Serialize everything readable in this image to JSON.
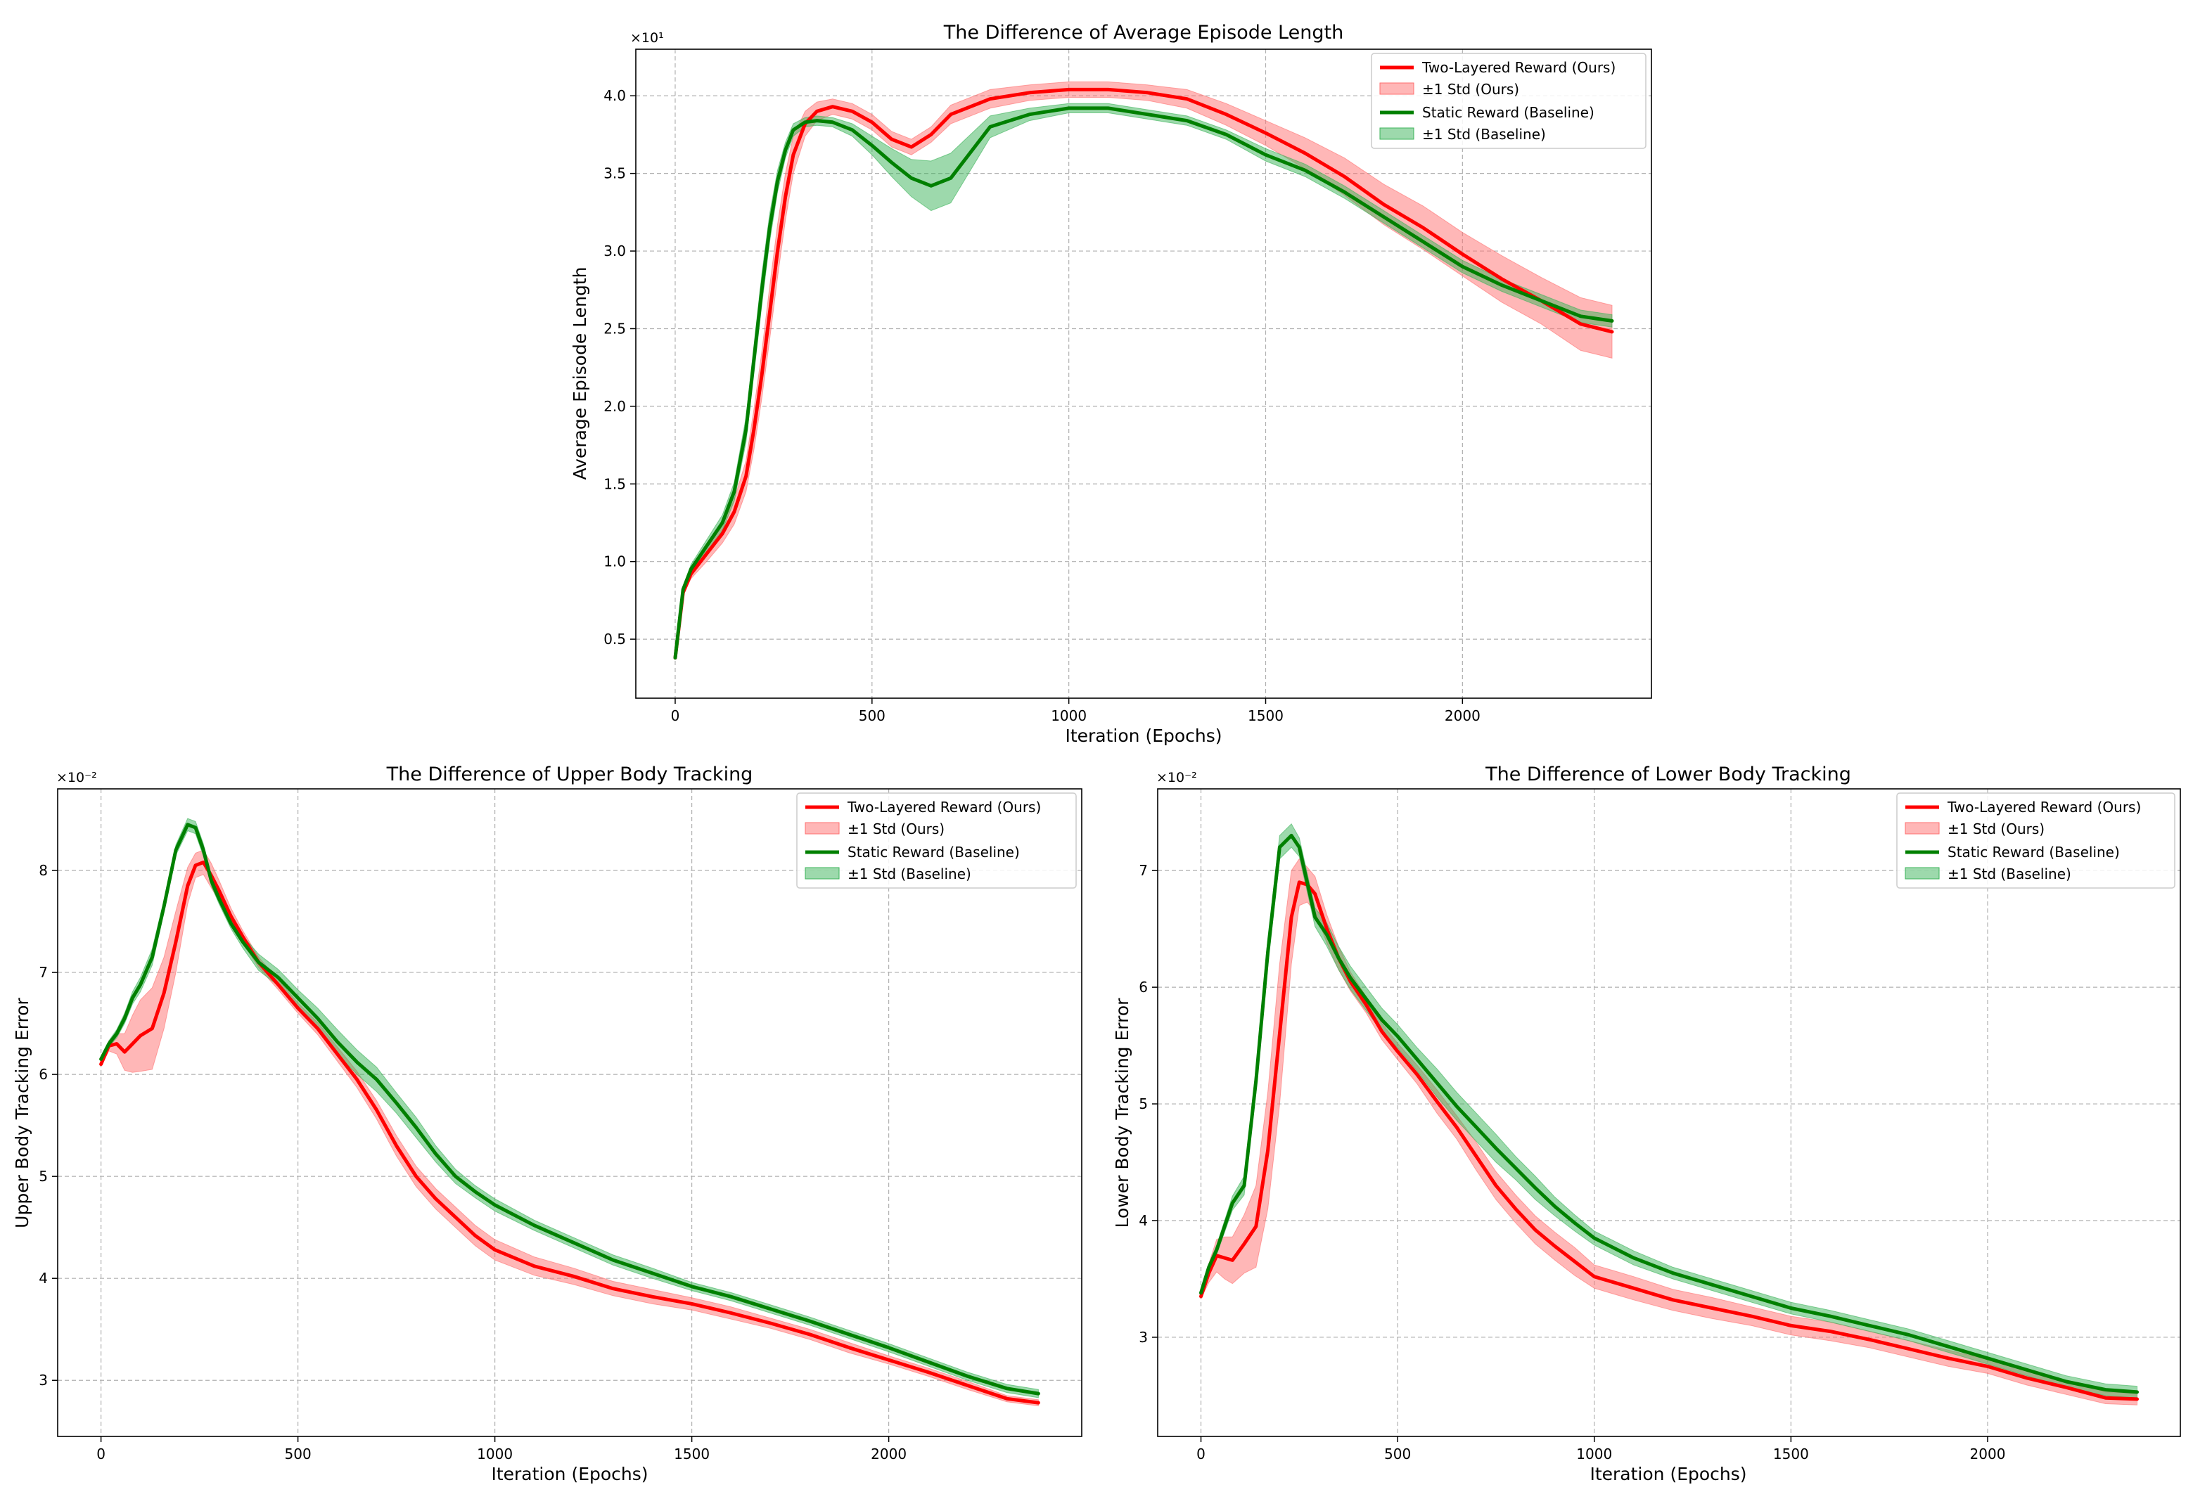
{
  "colors": {
    "ours": "#ff0000",
    "ours_band": "#ff6f6f",
    "baseline": "#008000",
    "baseline_band": "#3cb45a"
  },
  "legend": {
    "ours_line": "Two-Layered Reward (Ours)",
    "ours_std": "±1 Std (Ours)",
    "baseline_line": "Static Reward (Baseline)",
    "baseline_std": "±1 Std (Baseline)"
  },
  "chart_data": [
    {
      "id": "episode",
      "type": "line",
      "title": "The Difference of Average Episode Length",
      "xlabel": "Iteration (Epochs)",
      "ylabel": "Average Episode Length",
      "sci_label": "×10¹",
      "xlim": [
        -100,
        2480
      ],
      "ylim": [
        0.12,
        4.3
      ],
      "xticks": [
        0,
        500,
        1000,
        1500,
        2000
      ],
      "yticks": [
        0.5,
        1.0,
        1.5,
        2.0,
        2.5,
        3.0,
        3.5,
        4.0
      ],
      "ytick_labels": [
        "0.5",
        "1.0",
        "1.5",
        "2.0",
        "2.5",
        "3.0",
        "3.5",
        "4.0"
      ],
      "grid": true,
      "legend_position": "top-right",
      "series": [
        {
          "name": "Two-Layered Reward (Ours)",
          "x": [
            0,
            20,
            40,
            80,
            120,
            150,
            180,
            200,
            220,
            240,
            260,
            280,
            300,
            330,
            360,
            400,
            450,
            500,
            550,
            600,
            650,
            700,
            800,
            900,
            1000,
            1100,
            1200,
            1300,
            1400,
            1500,
            1600,
            1700,
            1800,
            1900,
            2000,
            2100,
            2200,
            2300,
            2380
          ],
          "y": [
            0.38,
            0.8,
            0.92,
            1.05,
            1.18,
            1.32,
            1.55,
            1.85,
            2.2,
            2.6,
            3.0,
            3.35,
            3.62,
            3.82,
            3.9,
            3.93,
            3.9,
            3.83,
            3.72,
            3.67,
            3.75,
            3.88,
            3.98,
            4.02,
            4.04,
            4.04,
            4.02,
            3.98,
            3.88,
            3.76,
            3.63,
            3.48,
            3.3,
            3.15,
            2.98,
            2.82,
            2.68,
            2.53,
            2.48
          ],
          "std": [
            0.01,
            0.02,
            0.03,
            0.05,
            0.06,
            0.08,
            0.1,
            0.13,
            0.15,
            0.17,
            0.17,
            0.15,
            0.12,
            0.08,
            0.06,
            0.05,
            0.05,
            0.05,
            0.05,
            0.05,
            0.05,
            0.06,
            0.06,
            0.05,
            0.05,
            0.05,
            0.05,
            0.06,
            0.07,
            0.08,
            0.1,
            0.12,
            0.13,
            0.14,
            0.14,
            0.15,
            0.15,
            0.17,
            0.17
          ]
        },
        {
          "name": "Static Reward (Baseline)",
          "x": [
            0,
            20,
            40,
            80,
            120,
            150,
            180,
            200,
            220,
            240,
            260,
            280,
            300,
            330,
            360,
            400,
            450,
            500,
            550,
            600,
            650,
            700,
            800,
            900,
            1000,
            1100,
            1200,
            1300,
            1400,
            1500,
            1600,
            1700,
            1800,
            1900,
            2000,
            2100,
            2200,
            2300,
            2380
          ],
          "y": [
            0.38,
            0.82,
            0.95,
            1.1,
            1.25,
            1.45,
            1.85,
            2.3,
            2.75,
            3.15,
            3.45,
            3.65,
            3.78,
            3.83,
            3.84,
            3.83,
            3.78,
            3.68,
            3.57,
            3.47,
            3.42,
            3.47,
            3.8,
            3.88,
            3.92,
            3.92,
            3.88,
            3.84,
            3.75,
            3.62,
            3.52,
            3.38,
            3.22,
            3.06,
            2.9,
            2.78,
            2.68,
            2.58,
            2.55
          ],
          "std": [
            0.01,
            0.02,
            0.03,
            0.04,
            0.05,
            0.06,
            0.08,
            0.09,
            0.1,
            0.09,
            0.07,
            0.05,
            0.04,
            0.03,
            0.03,
            0.03,
            0.04,
            0.06,
            0.09,
            0.12,
            0.16,
            0.16,
            0.07,
            0.04,
            0.03,
            0.03,
            0.03,
            0.03,
            0.03,
            0.04,
            0.04,
            0.04,
            0.04,
            0.04,
            0.04,
            0.04,
            0.04,
            0.04,
            0.04
          ]
        }
      ]
    },
    {
      "id": "upper",
      "type": "line",
      "title": "The Difference of Upper Body Tracking",
      "xlabel": "Iteration (Epochs)",
      "ylabel": "Upper Body Tracking Error",
      "sci_label": "×10⁻²",
      "xlim": [
        -110,
        2490
      ],
      "ylim": [
        2.45,
        8.8
      ],
      "xticks": [
        0,
        500,
        1000,
        1500,
        2000
      ],
      "yticks": [
        3,
        4,
        5,
        6,
        7,
        8
      ],
      "ytick_labels": [
        "3",
        "4",
        "5",
        "6",
        "7",
        "8"
      ],
      "grid": true,
      "legend_position": "top-right",
      "series": [
        {
          "name": "Two-Layered Reward (Ours)",
          "x": [
            0,
            20,
            40,
            60,
            80,
            100,
            130,
            160,
            190,
            220,
            240,
            260,
            280,
            300,
            330,
            360,
            400,
            450,
            500,
            550,
            600,
            650,
            700,
            750,
            800,
            850,
            900,
            950,
            1000,
            1100,
            1200,
            1300,
            1400,
            1500,
            1600,
            1700,
            1800,
            1900,
            2000,
            2100,
            2200,
            2300,
            2380
          ],
          "y": [
            6.1,
            6.28,
            6.3,
            6.22,
            6.3,
            6.38,
            6.45,
            6.8,
            7.3,
            7.85,
            8.05,
            8.08,
            7.95,
            7.8,
            7.55,
            7.35,
            7.1,
            6.88,
            6.65,
            6.45,
            6.2,
            5.95,
            5.65,
            5.3,
            5.0,
            4.78,
            4.6,
            4.42,
            4.28,
            4.12,
            4.02,
            3.9,
            3.82,
            3.75,
            3.66,
            3.56,
            3.45,
            3.32,
            3.2,
            3.08,
            2.95,
            2.82,
            2.78
          ],
          "std": [
            0.02,
            0.05,
            0.1,
            0.18,
            0.28,
            0.35,
            0.4,
            0.35,
            0.3,
            0.18,
            0.12,
            0.12,
            0.12,
            0.1,
            0.08,
            0.06,
            0.05,
            0.05,
            0.05,
            0.06,
            0.07,
            0.08,
            0.09,
            0.1,
            0.1,
            0.1,
            0.1,
            0.1,
            0.1,
            0.09,
            0.08,
            0.07,
            0.07,
            0.06,
            0.06,
            0.05,
            0.05,
            0.05,
            0.04,
            0.04,
            0.04,
            0.03,
            0.03
          ]
        },
        {
          "name": "Static Reward (Baseline)",
          "x": [
            0,
            20,
            40,
            60,
            80,
            100,
            130,
            160,
            190,
            220,
            240,
            260,
            280,
            300,
            330,
            360,
            400,
            450,
            500,
            550,
            600,
            650,
            700,
            750,
            800,
            850,
            900,
            950,
            1000,
            1100,
            1200,
            1300,
            1400,
            1500,
            1600,
            1700,
            1800,
            1900,
            2000,
            2100,
            2200,
            2300,
            2380
          ],
          "y": [
            6.15,
            6.3,
            6.4,
            6.55,
            6.75,
            6.88,
            7.15,
            7.65,
            8.2,
            8.45,
            8.42,
            8.2,
            7.9,
            7.72,
            7.48,
            7.3,
            7.1,
            6.95,
            6.75,
            6.55,
            6.32,
            6.12,
            5.95,
            5.72,
            5.48,
            5.22,
            5.0,
            4.85,
            4.72,
            4.52,
            4.35,
            4.18,
            4.05,
            3.92,
            3.82,
            3.7,
            3.58,
            3.45,
            3.32,
            3.18,
            3.04,
            2.92,
            2.87
          ],
          "std": [
            0.02,
            0.03,
            0.04,
            0.05,
            0.06,
            0.07,
            0.08,
            0.06,
            0.05,
            0.06,
            0.06,
            0.06,
            0.05,
            0.05,
            0.05,
            0.06,
            0.08,
            0.08,
            0.08,
            0.1,
            0.12,
            0.12,
            0.12,
            0.1,
            0.1,
            0.08,
            0.07,
            0.06,
            0.06,
            0.05,
            0.05,
            0.05,
            0.05,
            0.04,
            0.04,
            0.04,
            0.04,
            0.04,
            0.04,
            0.04,
            0.04,
            0.04,
            0.04
          ]
        }
      ]
    },
    {
      "id": "lower",
      "type": "line",
      "title": "The Difference of Lower Body Tracking",
      "xlabel": "Iteration (Epochs)",
      "ylabel": "Lower Body Tracking Error",
      "sci_label": "×10⁻²",
      "xlim": [
        -110,
        2490
      ],
      "ylim": [
        2.15,
        7.7
      ],
      "xticks": [
        0,
        500,
        1000,
        1500,
        2000
      ],
      "yticks": [
        3,
        4,
        5,
        6,
        7
      ],
      "ytick_labels": [
        "3",
        "4",
        "5",
        "6",
        "7"
      ],
      "grid": true,
      "legend_position": "top-right",
      "series": [
        {
          "name": "Two-Layered Reward (Ours)",
          "x": [
            0,
            20,
            40,
            60,
            80,
            110,
            140,
            170,
            200,
            230,
            250,
            270,
            290,
            320,
            350,
            380,
            420,
            460,
            500,
            550,
            600,
            650,
            700,
            750,
            800,
            850,
            900,
            950,
            1000,
            1100,
            1200,
            1300,
            1400,
            1500,
            1600,
            1700,
            1800,
            1900,
            2000,
            2100,
            2200,
            2300,
            2380
          ],
          "y": [
            3.35,
            3.55,
            3.7,
            3.68,
            3.66,
            3.8,
            3.95,
            4.6,
            5.6,
            6.6,
            6.9,
            6.88,
            6.8,
            6.5,
            6.25,
            6.05,
            5.85,
            5.62,
            5.45,
            5.25,
            5.02,
            4.8,
            4.55,
            4.3,
            4.1,
            3.92,
            3.78,
            3.65,
            3.52,
            3.42,
            3.32,
            3.25,
            3.18,
            3.1,
            3.05,
            2.98,
            2.9,
            2.82,
            2.75,
            2.65,
            2.57,
            2.48,
            2.47
          ],
          "std": [
            0.02,
            0.08,
            0.14,
            0.18,
            0.2,
            0.25,
            0.35,
            0.5,
            0.6,
            0.4,
            0.2,
            0.15,
            0.15,
            0.12,
            0.1,
            0.08,
            0.07,
            0.07,
            0.07,
            0.08,
            0.1,
            0.1,
            0.12,
            0.12,
            0.12,
            0.12,
            0.12,
            0.12,
            0.1,
            0.1,
            0.09,
            0.09,
            0.08,
            0.08,
            0.08,
            0.07,
            0.07,
            0.07,
            0.06,
            0.06,
            0.06,
            0.05,
            0.05
          ]
        },
        {
          "name": "Static Reward (Baseline)",
          "x": [
            0,
            20,
            40,
            60,
            80,
            110,
            140,
            170,
            200,
            230,
            250,
            270,
            290,
            320,
            350,
            380,
            420,
            460,
            500,
            550,
            600,
            650,
            700,
            750,
            800,
            850,
            900,
            950,
            1000,
            1100,
            1200,
            1300,
            1400,
            1500,
            1600,
            1700,
            1800,
            1900,
            2000,
            2100,
            2200,
            2300,
            2380
          ],
          "y": [
            3.38,
            3.6,
            3.75,
            3.95,
            4.15,
            4.3,
            5.2,
            6.3,
            7.2,
            7.3,
            7.2,
            6.9,
            6.6,
            6.45,
            6.25,
            6.08,
            5.9,
            5.72,
            5.58,
            5.38,
            5.18,
            4.98,
            4.8,
            4.62,
            4.45,
            4.28,
            4.12,
            3.98,
            3.85,
            3.68,
            3.55,
            3.45,
            3.35,
            3.25,
            3.18,
            3.1,
            3.02,
            2.92,
            2.82,
            2.72,
            2.62,
            2.55,
            2.53
          ],
          "std": [
            0.02,
            0.03,
            0.04,
            0.05,
            0.06,
            0.08,
            0.1,
            0.12,
            0.1,
            0.1,
            0.08,
            0.08,
            0.08,
            0.1,
            0.1,
            0.1,
            0.1,
            0.1,
            0.1,
            0.1,
            0.12,
            0.12,
            0.12,
            0.12,
            0.1,
            0.1,
            0.08,
            0.07,
            0.06,
            0.06,
            0.05,
            0.05,
            0.05,
            0.05,
            0.05,
            0.05,
            0.05,
            0.05,
            0.05,
            0.05,
            0.05,
            0.05,
            0.05
          ]
        }
      ]
    }
  ]
}
